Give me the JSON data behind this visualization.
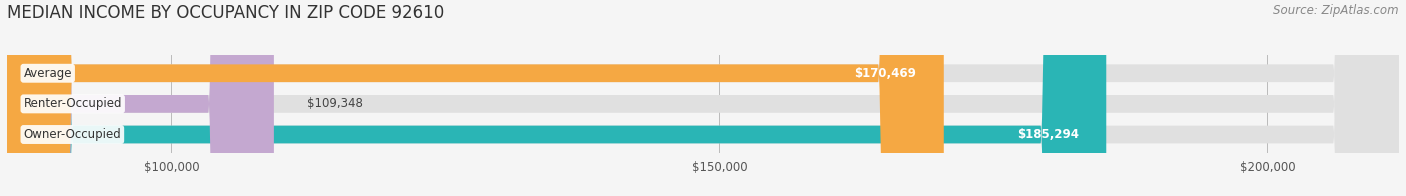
{
  "title": "MEDIAN INCOME BY OCCUPANCY IN ZIP CODE 92610",
  "source": "Source: ZipAtlas.com",
  "categories": [
    "Owner-Occupied",
    "Renter-Occupied",
    "Average"
  ],
  "values": [
    185294,
    109348,
    170469
  ],
  "bar_colors": [
    "#2ab5b5",
    "#c4a8d0",
    "#f5a843"
  ],
  "xlim": [
    85000,
    212000
  ],
  "xticks": [
    100000,
    150000,
    200000
  ],
  "xtick_labels": [
    "$100,000",
    "$150,000",
    "$200,000"
  ],
  "bar_height": 0.58,
  "label_values": [
    "$185,294",
    "$109,348",
    "$170,469"
  ],
  "background_color": "#f5f5f5",
  "bar_bg_color": "#e0e0e0",
  "title_fontsize": 12,
  "source_fontsize": 8.5
}
